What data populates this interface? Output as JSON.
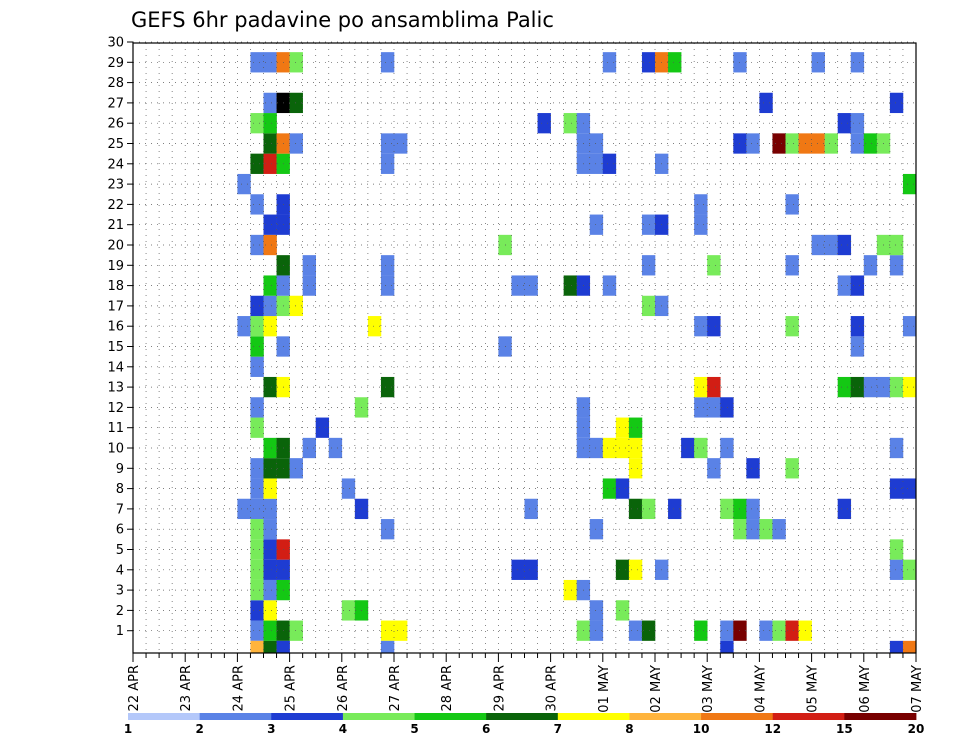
{
  "chart_data": {
    "type": "heatmap",
    "title": "GEFS 6hr padavine po ansamblima Palic",
    "x_labels": [
      "22 APR",
      "23 APR",
      "24 APR",
      "25 APR",
      "26 APR",
      "27 APR",
      "28 APR",
      "29 APR",
      "30 APR",
      "01 MAY",
      "02 MAY",
      "03 MAY",
      "04 MAY",
      "05 MAY",
      "06 MAY",
      "07 MAY"
    ],
    "x_step": "6hr",
    "y_labels": [
      "1",
      "2",
      "3",
      "4",
      "5",
      "6",
      "7",
      "8",
      "9",
      "10",
      "11",
      "12",
      "13",
      "14",
      "15",
      "16",
      "17",
      "18",
      "19",
      "20",
      "21",
      "22",
      "23",
      "24",
      "25",
      "26",
      "27",
      "28",
      "29",
      "30"
    ],
    "grid": true,
    "legend": {
      "placement": "bottom",
      "colors": [
        "#b4c8fa",
        "#5a82e6",
        "#1e3cd2",
        "#78eb5a",
        "#14c814",
        "#0a640a",
        "#ffff00",
        "#ffb43c",
        "#f07814",
        "#d21e14",
        "#780000"
      ],
      "labels": [
        "1",
        "2",
        "3",
        "4",
        "5",
        "6",
        "7",
        "8",
        "10",
        "12",
        "15",
        "20"
      ]
    },
    "cells": [
      [
        9,
        1,
        1
      ],
      [
        10,
        1,
        4
      ],
      [
        11,
        1,
        5
      ],
      [
        12,
        1,
        3
      ],
      [
        19,
        1,
        6
      ],
      [
        20,
        1,
        6
      ],
      [
        34,
        1,
        3
      ],
      [
        35,
        1,
        1
      ],
      [
        38,
        1,
        1
      ],
      [
        39,
        1,
        5
      ],
      [
        43,
        1,
        4
      ],
      [
        45,
        1,
        1
      ],
      [
        46,
        1,
        10
      ],
      [
        48,
        1,
        1
      ],
      [
        49,
        1,
        3
      ],
      [
        50,
        1,
        9
      ],
      [
        51,
        1,
        6
      ],
      [
        9,
        2,
        2
      ],
      [
        10,
        2,
        6
      ],
      [
        16,
        2,
        3
      ],
      [
        17,
        2,
        4
      ],
      [
        35,
        2,
        1
      ],
      [
        37,
        2,
        3
      ],
      [
        9,
        3,
        3
      ],
      [
        10,
        3,
        1
      ],
      [
        11,
        3,
        4
      ],
      [
        33,
        3,
        6
      ],
      [
        34,
        3,
        1
      ],
      [
        9,
        4,
        3
      ],
      [
        10,
        4,
        2
      ],
      [
        11,
        4,
        2
      ],
      [
        29,
        4,
        2
      ],
      [
        30,
        4,
        2
      ],
      [
        37,
        4,
        5
      ],
      [
        38,
        4,
        6
      ],
      [
        40,
        4,
        1
      ],
      [
        58,
        4,
        1
      ],
      [
        59,
        4,
        3
      ],
      [
        9,
        5,
        3
      ],
      [
        10,
        5,
        2
      ],
      [
        11,
        5,
        9
      ],
      [
        58,
        5,
        3
      ],
      [
        9,
        6,
        3
      ],
      [
        10,
        6,
        1
      ],
      [
        19,
        6,
        1
      ],
      [
        35,
        6,
        1
      ],
      [
        46,
        6,
        3
      ],
      [
        47,
        6,
        1
      ],
      [
        48,
        6,
        3
      ],
      [
        49,
        6,
        1
      ],
      [
        8,
        7,
        1
      ],
      [
        9,
        7,
        1
      ],
      [
        10,
        7,
        1
      ],
      [
        17,
        7,
        2
      ],
      [
        30,
        7,
        1
      ],
      [
        38,
        7,
        5
      ],
      [
        39,
        7,
        3
      ],
      [
        41,
        7,
        2
      ],
      [
        45,
        7,
        3
      ],
      [
        46,
        7,
        4
      ],
      [
        47,
        7,
        1
      ],
      [
        54,
        7,
        2
      ],
      [
        9,
        8,
        1
      ],
      [
        10,
        8,
        6
      ],
      [
        16,
        8,
        1
      ],
      [
        36,
        8,
        4
      ],
      [
        37,
        8,
        2
      ],
      [
        58,
        8,
        2
      ],
      [
        59,
        8,
        2
      ],
      [
        9,
        9,
        1
      ],
      [
        10,
        9,
        5
      ],
      [
        11,
        9,
        5
      ],
      [
        12,
        9,
        1
      ],
      [
        38,
        9,
        6
      ],
      [
        44,
        9,
        1
      ],
      [
        47,
        9,
        2
      ],
      [
        50,
        9,
        3
      ],
      [
        10,
        10,
        4
      ],
      [
        11,
        10,
        5
      ],
      [
        13,
        10,
        1
      ],
      [
        15,
        10,
        1
      ],
      [
        34,
        10,
        1
      ],
      [
        35,
        10,
        1
      ],
      [
        36,
        10,
        6
      ],
      [
        37,
        10,
        6
      ],
      [
        38,
        10,
        6
      ],
      [
        42,
        10,
        2
      ],
      [
        43,
        10,
        3
      ],
      [
        45,
        10,
        1
      ],
      [
        58,
        10,
        1
      ],
      [
        9,
        11,
        3
      ],
      [
        14,
        11,
        2
      ],
      [
        34,
        11,
        1
      ],
      [
        37,
        11,
        6
      ],
      [
        38,
        11,
        4
      ],
      [
        9,
        12,
        1
      ],
      [
        17,
        12,
        3
      ],
      [
        34,
        12,
        1
      ],
      [
        43,
        12,
        1
      ],
      [
        44,
        12,
        1
      ],
      [
        45,
        12,
        2
      ],
      [
        10,
        13,
        5
      ],
      [
        11,
        13,
        6
      ],
      [
        19,
        13,
        5
      ],
      [
        43,
        13,
        6
      ],
      [
        44,
        13,
        9
      ],
      [
        54,
        13,
        4
      ],
      [
        55,
        13,
        5
      ],
      [
        56,
        13,
        1
      ],
      [
        57,
        13,
        1
      ],
      [
        58,
        13,
        3
      ],
      [
        59,
        13,
        6
      ],
      [
        9,
        14,
        1
      ],
      [
        9,
        15,
        4
      ],
      [
        11,
        15,
        1
      ],
      [
        28,
        15,
        1
      ],
      [
        55,
        15,
        1
      ],
      [
        8,
        16,
        1
      ],
      [
        9,
        16,
        3
      ],
      [
        10,
        16,
        6
      ],
      [
        18,
        16,
        6
      ],
      [
        43,
        16,
        1
      ],
      [
        44,
        16,
        2
      ],
      [
        50,
        16,
        3
      ],
      [
        55,
        16,
        2
      ],
      [
        59,
        16,
        1
      ],
      [
        9,
        17,
        2
      ],
      [
        10,
        17,
        1
      ],
      [
        11,
        17,
        3
      ],
      [
        12,
        17,
        6
      ],
      [
        39,
        17,
        3
      ],
      [
        40,
        17,
        1
      ],
      [
        10,
        18,
        4
      ],
      [
        11,
        18,
        1
      ],
      [
        13,
        18,
        1
      ],
      [
        19,
        18,
        1
      ],
      [
        29,
        18,
        1
      ],
      [
        30,
        18,
        1
      ],
      [
        33,
        18,
        5
      ],
      [
        34,
        18,
        2
      ],
      [
        36,
        18,
        1
      ],
      [
        54,
        18,
        1
      ],
      [
        55,
        18,
        2
      ],
      [
        11,
        19,
        5
      ],
      [
        13,
        19,
        1
      ],
      [
        19,
        19,
        1
      ],
      [
        39,
        19,
        1
      ],
      [
        44,
        19,
        3
      ],
      [
        50,
        19,
        1
      ],
      [
        56,
        19,
        1
      ],
      [
        58,
        19,
        1
      ],
      [
        9,
        20,
        1
      ],
      [
        10,
        20,
        8
      ],
      [
        28,
        20,
        3
      ],
      [
        52,
        20,
        1
      ],
      [
        53,
        20,
        1
      ],
      [
        54,
        20,
        2
      ],
      [
        57,
        20,
        3
      ],
      [
        58,
        20,
        3
      ],
      [
        10,
        21,
        2
      ],
      [
        11,
        21,
        2
      ],
      [
        35,
        21,
        1
      ],
      [
        39,
        21,
        1
      ],
      [
        40,
        21,
        2
      ],
      [
        43,
        21,
        1
      ],
      [
        9,
        22,
        1
      ],
      [
        11,
        22,
        2
      ],
      [
        43,
        22,
        1
      ],
      [
        50,
        22,
        1
      ],
      [
        8,
        23,
        1
      ],
      [
        59,
        23,
        4
      ],
      [
        9,
        24,
        5
      ],
      [
        10,
        24,
        9
      ],
      [
        11,
        24,
        4
      ],
      [
        19,
        24,
        1
      ],
      [
        34,
        24,
        1
      ],
      [
        35,
        24,
        1
      ],
      [
        36,
        24,
        2
      ],
      [
        40,
        24,
        1
      ],
      [
        10,
        25,
        5
      ],
      [
        11,
        25,
        8
      ],
      [
        12,
        25,
        1
      ],
      [
        19,
        25,
        1
      ],
      [
        20,
        25,
        1
      ],
      [
        34,
        25,
        1
      ],
      [
        35,
        25,
        1
      ],
      [
        46,
        25,
        2
      ],
      [
        47,
        25,
        1
      ],
      [
        49,
        25,
        10
      ],
      [
        50,
        25,
        3
      ],
      [
        51,
        25,
        8
      ],
      [
        52,
        25,
        8
      ],
      [
        53,
        25,
        3
      ],
      [
        55,
        25,
        1
      ],
      [
        56,
        25,
        4
      ],
      [
        57,
        25,
        3
      ],
      [
        9,
        26,
        3
      ],
      [
        10,
        26,
        4
      ],
      [
        31,
        26,
        2
      ],
      [
        33,
        26,
        3
      ],
      [
        34,
        26,
        1
      ],
      [
        54,
        26,
        2
      ],
      [
        55,
        26,
        1
      ],
      [
        10,
        27,
        1
      ],
      [
        11,
        27,
        11
      ],
      [
        12,
        27,
        5
      ],
      [
        48,
        27,
        2
      ],
      [
        58,
        27,
        2
      ],
      [
        9,
        29,
        1
      ],
      [
        10,
        29,
        1
      ],
      [
        11,
        29,
        8
      ],
      [
        12,
        29,
        3
      ],
      [
        19,
        29,
        1
      ],
      [
        36,
        29,
        1
      ],
      [
        39,
        29,
        2
      ],
      [
        40,
        29,
        8
      ],
      [
        41,
        29,
        4
      ],
      [
        46,
        29,
        1
      ],
      [
        52,
        29,
        1
      ],
      [
        55,
        29,
        1
      ],
      [
        9,
        0,
        7
      ],
      [
        10,
        0,
        5
      ],
      [
        11,
        0,
        2
      ],
      [
        19,
        0,
        1
      ],
      [
        45,
        0,
        2
      ],
      [
        58,
        0,
        2
      ],
      [
        59,
        0,
        8
      ]
    ]
  }
}
